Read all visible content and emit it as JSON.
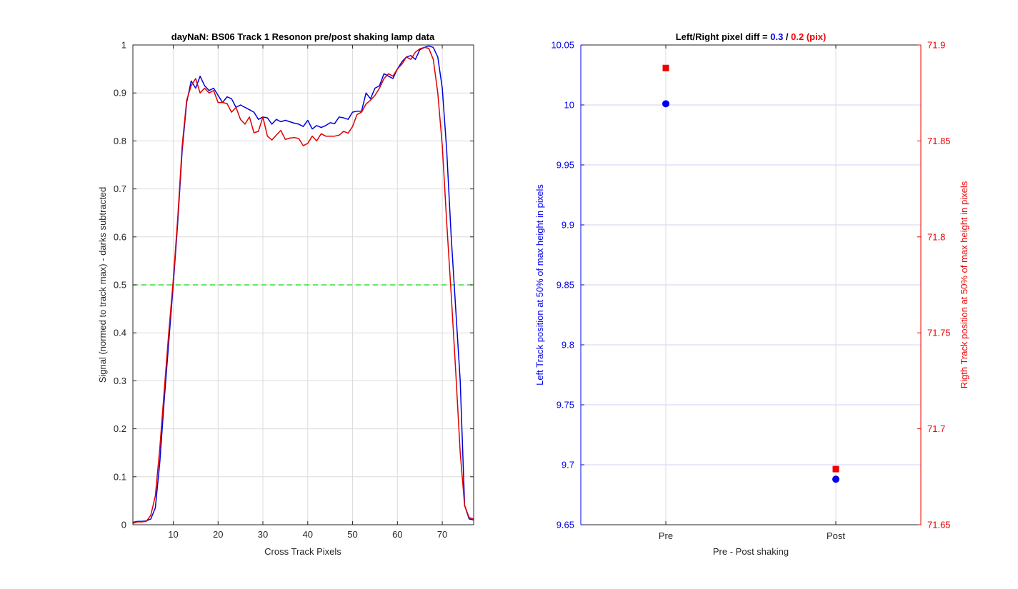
{
  "chart_data": [
    {
      "type": "line",
      "title": "dayNaN: BS06  Track 1 Resonon pre/post shaking lamp data",
      "xlabel": "Cross Track Pixels",
      "ylabel": "Signal (normed to track max) - darks subtracted",
      "xlim": [
        1,
        77
      ],
      "ylim": [
        0,
        1
      ],
      "xticks": [
        "10",
        "20",
        "30",
        "40",
        "50",
        "60",
        "70"
      ],
      "yticks": [
        "0",
        "0.1",
        "0.2",
        "0.3",
        "0.4",
        "0.5",
        "0.6",
        "0.7",
        "0.8",
        "0.9",
        "1"
      ],
      "grid": true,
      "threshold_line": {
        "y": 0.5,
        "color": "#33dd33",
        "style": "dashed"
      },
      "series": [
        {
          "color": "#0000dd",
          "x": [
            1,
            2,
            3,
            4,
            5,
            6,
            7,
            8,
            9,
            10,
            11,
            12,
            13,
            14,
            15,
            16,
            17,
            18,
            19,
            20,
            21,
            22,
            23,
            24,
            25,
            26,
            27,
            28,
            29,
            30,
            31,
            32,
            33,
            34,
            35,
            36,
            37,
            38,
            39,
            40,
            41,
            42,
            43,
            44,
            45,
            46,
            47,
            48,
            49,
            50,
            51,
            52,
            53,
            54,
            55,
            56,
            57,
            58,
            59,
            60,
            61,
            62,
            63,
            64,
            65,
            66,
            67,
            68,
            69,
            70,
            71,
            72,
            73,
            74,
            75,
            76,
            77
          ],
          "y": [
            0.005,
            0.007,
            0.007,
            0.008,
            0.012,
            0.035,
            0.13,
            0.26,
            0.38,
            0.5,
            0.63,
            0.78,
            0.88,
            0.925,
            0.91,
            0.935,
            0.915,
            0.905,
            0.91,
            0.895,
            0.88,
            0.892,
            0.888,
            0.87,
            0.875,
            0.87,
            0.865,
            0.86,
            0.845,
            0.85,
            0.848,
            0.835,
            0.845,
            0.84,
            0.843,
            0.84,
            0.837,
            0.835,
            0.83,
            0.843,
            0.825,
            0.832,
            0.828,
            0.832,
            0.838,
            0.836,
            0.85,
            0.848,
            0.845,
            0.86,
            0.862,
            0.862,
            0.9,
            0.888,
            0.91,
            0.915,
            0.94,
            0.935,
            0.93,
            0.95,
            0.965,
            0.975,
            0.978,
            0.97,
            0.99,
            0.995,
            0.998,
            0.995,
            0.975,
            0.91,
            0.78,
            0.6,
            0.45,
            0.3,
            0.04,
            0.012,
            0.01
          ]
        },
        {
          "color": "#dd0000",
          "x": [
            1,
            2,
            3,
            4,
            5,
            6,
            7,
            8,
            9,
            10,
            11,
            12,
            13,
            14,
            15,
            16,
            17,
            18,
            19,
            20,
            21,
            22,
            23,
            24,
            25,
            26,
            27,
            28,
            29,
            30,
            31,
            32,
            33,
            34,
            35,
            36,
            37,
            38,
            39,
            40,
            41,
            42,
            43,
            44,
            45,
            46,
            47,
            48,
            49,
            50,
            51,
            52,
            53,
            54,
            55,
            56,
            57,
            58,
            59,
            60,
            61,
            62,
            63,
            64,
            65,
            66,
            67,
            68,
            69,
            70,
            71,
            72,
            73,
            74,
            75,
            76,
            77
          ],
          "y": [
            0.003,
            0.006,
            0.006,
            0.007,
            0.02,
            0.06,
            0.16,
            0.28,
            0.4,
            0.51,
            0.64,
            0.79,
            0.885,
            0.915,
            0.93,
            0.9,
            0.91,
            0.9,
            0.905,
            0.88,
            0.88,
            0.878,
            0.86,
            0.87,
            0.845,
            0.835,
            0.85,
            0.817,
            0.82,
            0.85,
            0.81,
            0.802,
            0.812,
            0.822,
            0.803,
            0.806,
            0.807,
            0.805,
            0.79,
            0.795,
            0.81,
            0.8,
            0.815,
            0.81,
            0.81,
            0.81,
            0.812,
            0.82,
            0.816,
            0.83,
            0.855,
            0.86,
            0.877,
            0.885,
            0.895,
            0.91,
            0.93,
            0.94,
            0.935,
            0.95,
            0.96,
            0.975,
            0.97,
            0.985,
            0.992,
            0.995,
            0.993,
            0.97,
            0.9,
            0.79,
            0.63,
            0.48,
            0.32,
            0.15,
            0.04,
            0.015,
            0.012
          ]
        }
      ]
    },
    {
      "type": "scatter",
      "title_prefix": "Left/Right pixel diff = ",
      "title_left_value": "0.3",
      "title_separator": " / ",
      "title_right_value": "0.2 (pix)",
      "xlabel": "Pre - Post shaking",
      "ylabel_left": "Left Track position at 50% of max height in pixels",
      "ylabel_right": "Rigth Track position at 50% of max height in pixels",
      "categories": [
        "Pre",
        "Post"
      ],
      "ylim_left": [
        9.65,
        10.05
      ],
      "yticks_left": [
        "9.65",
        "9.7",
        "9.75",
        "9.8",
        "9.85",
        "9.9",
        "9.95",
        "10",
        "10.05"
      ],
      "ylim_right": [
        71.65,
        71.9
      ],
      "yticks_right": [
        "71.65",
        "71.7",
        "71.75",
        "71.8",
        "71.85",
        "71.9"
      ],
      "left_color": "#0000ee",
      "right_color": "#ee0000",
      "left_series": {
        "values": [
          10.001,
          9.688
        ],
        "marker": "circle"
      },
      "right_series": {
        "values": [
          71.888,
          71.679
        ],
        "marker": "square"
      },
      "grid": true
    }
  ]
}
